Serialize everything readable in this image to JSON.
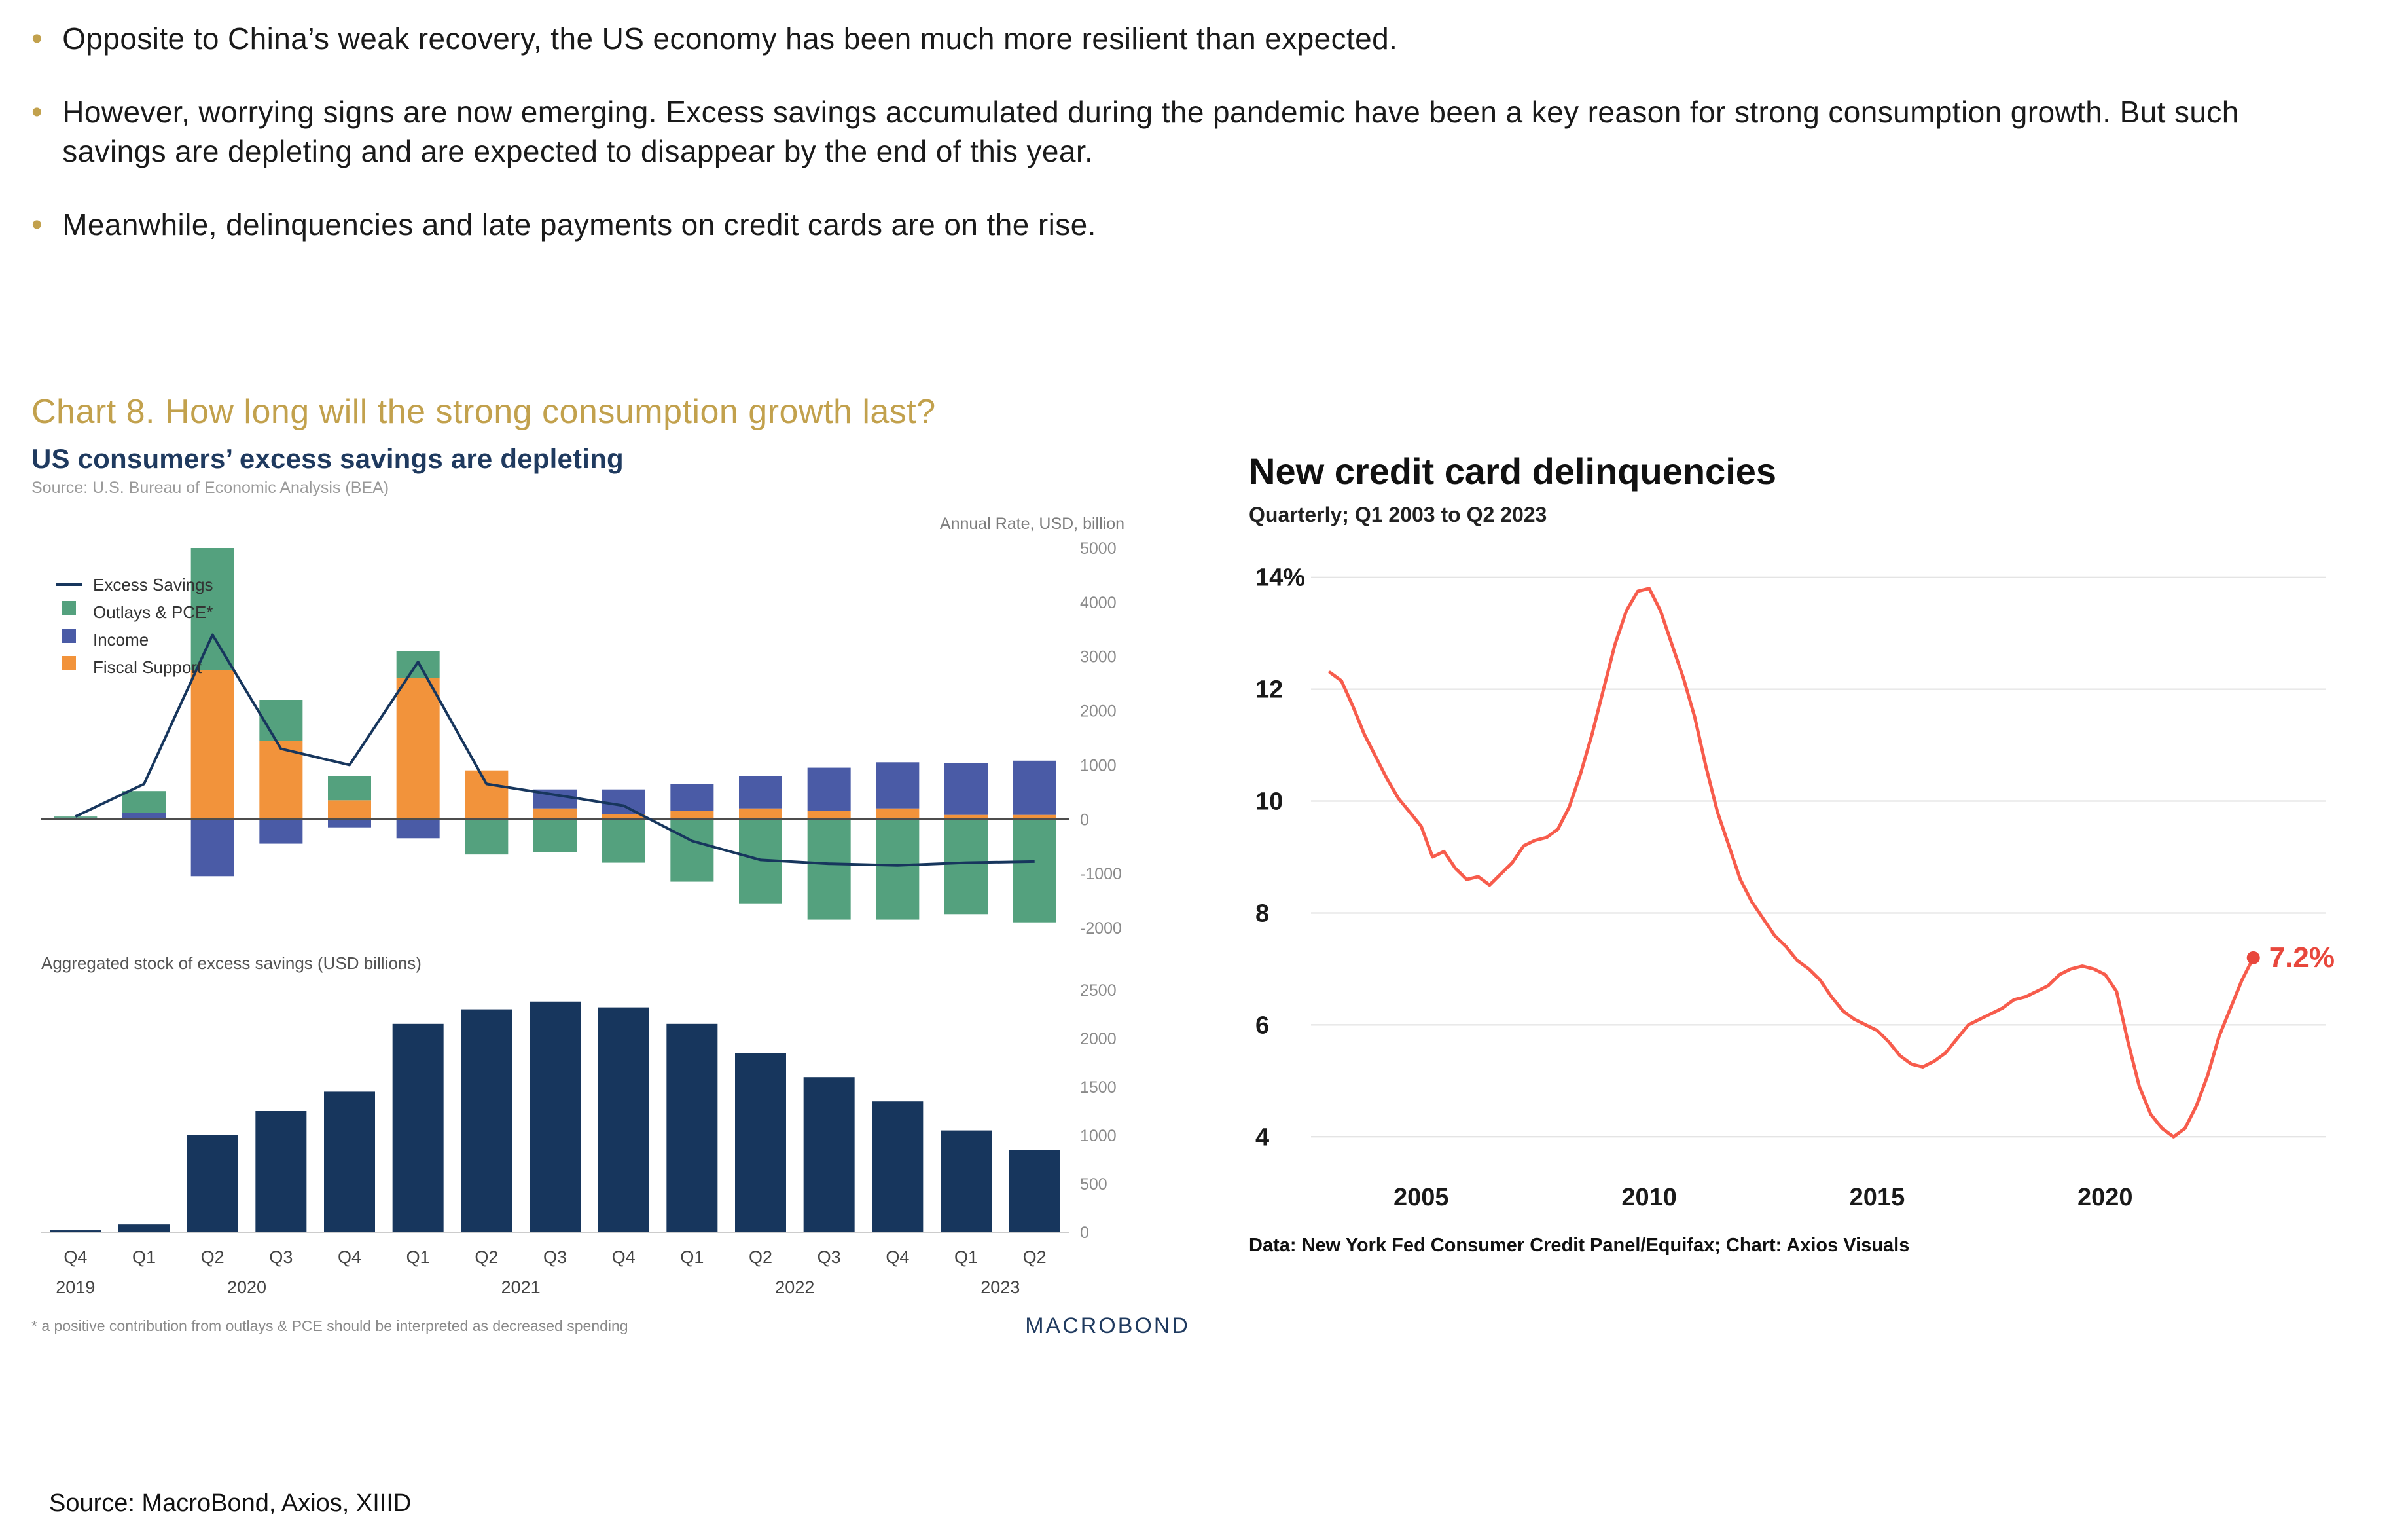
{
  "page": {
    "bullets": [
      "Opposite to China’s weak recovery, the US economy has been much more resilient than expected.",
      "However, worrying signs are now emerging. Excess savings accumulated during the pandemic have been a key reason for strong consumption growth. But such savings are depleting and are expected to disappear by the end of this year.",
      "Meanwhile, delinquencies and late payments on credit cards are on the rise."
    ],
    "section_title": "Chart 8. How long will the strong consumption growth last?",
    "source_line": "Source: MacroBond, Axios, XIIID"
  },
  "colors": {
    "accent_gold": "#c2a14d",
    "navy": "#1f3a5f",
    "axios_red": "#f75c4c"
  },
  "chart_data": [
    {
      "id": "excess-savings",
      "type": "bar",
      "title": "US consumers’ excess savings are depleting",
      "source": "Source: U.S. Bureau of Economic Analysis (BEA)",
      "axis_note": "Annual Rate, USD, billion",
      "footnote": "* a positive contribution from outlays & PCE should be interpreted as decreased spending",
      "logo": "MACROBOND",
      "categories": [
        "Q4",
        "Q1",
        "Q2",
        "Q3",
        "Q4",
        "Q1",
        "Q2",
        "Q3",
        "Q4",
        "Q1",
        "Q2",
        "Q3",
        "Q4",
        "Q1",
        "Q2"
      ],
      "year_labels": [
        {
          "label": "2019",
          "pos": 0
        },
        {
          "label": "2020",
          "pos": 2.5
        },
        {
          "label": "2021",
          "pos": 6.5
        },
        {
          "label": "2022",
          "pos": 10.5
        },
        {
          "label": "2023",
          "pos": 13.5
        }
      ],
      "legend": [
        {
          "label": "Excess Savings",
          "type": "line",
          "color": "#17365d"
        },
        {
          "label": "Outlays & PCE*",
          "type": "bar",
          "color": "#54a17e"
        },
        {
          "label": "Income",
          "type": "bar",
          "color": "#4a5ba6"
        },
        {
          "label": "Fiscal Support",
          "type": "bar",
          "color": "#f2933b"
        }
      ],
      "top_panel": {
        "ylim": [
          -2000,
          5000
        ],
        "yticks": [
          5000,
          4000,
          3000,
          2000,
          1000,
          0,
          -1000,
          -2000
        ],
        "bar_series": [
          {
            "name": "Fiscal Support",
            "color": "#f2933b",
            "values": [
              0,
              0,
              2750,
              1450,
              350,
              2600,
              900,
              200,
              100,
              150,
              200,
              150,
              200,
              80,
              80
            ]
          },
          {
            "name": "Income",
            "color": "#4a5ba6",
            "values": [
              30,
              120,
              -1050,
              -450,
              -150,
              -350,
              0,
              350,
              450,
              500,
              600,
              800,
              850,
              950,
              1000
            ]
          },
          {
            "name": "Outlays & PCE*",
            "color": "#54a17e",
            "values": [
              20,
              400,
              2250,
              750,
              450,
              500,
              -650,
              -600,
              -800,
              -1150,
              -1550,
              -1850,
              -1850,
              -1750,
              -1900
            ]
          }
        ],
        "line_series": {
          "name": "Excess Savings",
          "color": "#17365d",
          "values": [
            50,
            650,
            3400,
            1300,
            1000,
            2900,
            650,
            450,
            250,
            -400,
            -750,
            -820,
            -850,
            -800,
            -780
          ]
        }
      },
      "bottom_panel": {
        "label": "Aggregated stock of excess savings (USD billions)",
        "color": "#17365d",
        "ylim": [
          0,
          2500
        ],
        "yticks": [
          2500,
          2000,
          1500,
          1000,
          500,
          0
        ],
        "values": [
          20,
          80,
          1000,
          1250,
          1450,
          2150,
          2300,
          2380,
          2320,
          2150,
          1850,
          1600,
          1350,
          1050,
          850
        ]
      }
    },
    {
      "id": "credit-card-delinquencies",
      "type": "line",
      "title": "New credit card delinquencies",
      "subtitle": "Quarterly; Q1 2003 to Q2 2023",
      "footer": "Data: New York Fed Consumer Credit Panel/Equifax; Chart: Axios Visuals",
      "color": "#f75c4c",
      "end_label": "7.2%",
      "end_label_color": "#e8473c",
      "ylim": [
        3.5,
        14.5
      ],
      "yticks": [
        {
          "value": 14,
          "label": "14%"
        },
        {
          "value": 12,
          "label": "12"
        },
        {
          "value": 10,
          "label": "10"
        },
        {
          "value": 8,
          "label": "8"
        },
        {
          "value": 6,
          "label": "6"
        },
        {
          "value": 4,
          "label": "4"
        }
      ],
      "xticks": [
        2005,
        2010,
        2015,
        2020
      ],
      "x_domain": [
        2002.8,
        2023.9
      ],
      "start_year": 2003,
      "period": 0.25,
      "values": [
        12.3,
        12.15,
        11.7,
        11.2,
        10.8,
        10.4,
        10.05,
        9.8,
        9.55,
        9.0,
        9.1,
        8.8,
        8.6,
        8.65,
        8.5,
        8.7,
        8.9,
        9.2,
        9.3,
        9.35,
        9.5,
        9.9,
        10.5,
        11.2,
        12.0,
        12.8,
        13.4,
        13.75,
        13.8,
        13.4,
        12.8,
        12.2,
        11.5,
        10.6,
        9.8,
        9.2,
        8.6,
        8.2,
        7.9,
        7.6,
        7.4,
        7.15,
        7.0,
        6.8,
        6.5,
        6.25,
        6.1,
        6.0,
        5.9,
        5.7,
        5.45,
        5.3,
        5.25,
        5.35,
        5.5,
        5.75,
        6.0,
        6.1,
        6.2,
        6.3,
        6.45,
        6.5,
        6.6,
        6.7,
        6.9,
        7.0,
        7.05,
        7.0,
        6.9,
        6.6,
        5.7,
        4.9,
        4.4,
        4.15,
        4.0,
        4.15,
        4.55,
        5.1,
        5.8,
        6.3,
        6.8,
        7.2
      ]
    }
  ]
}
